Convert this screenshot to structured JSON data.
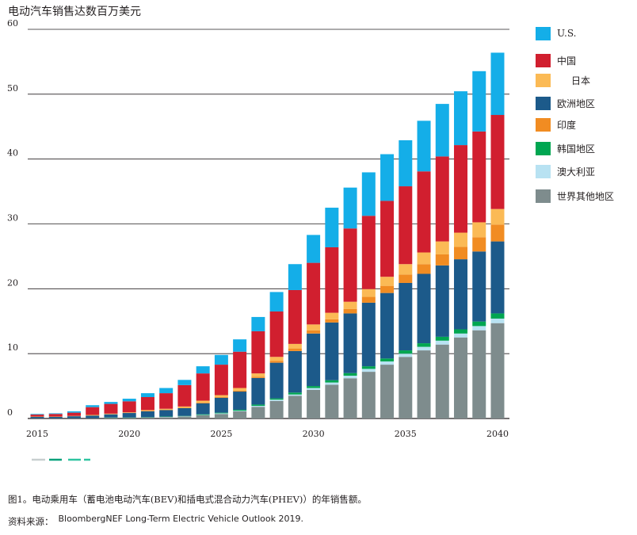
{
  "title": "电动汽车销售达数百万美元",
  "caption": "图1。电动乘用车（蓄电池电动汽车(BEV)和插电式混合动力汽车(PHEV)）的年销售额。",
  "source_label": "资料来源：",
  "source_text": "BloombergNEF Long-Term Electric Vehicle Outlook 2019.",
  "chart_data": {
    "type": "bar",
    "stacked": true,
    "title": "电动汽车销售达数百万美元",
    "xlabel": "",
    "ylabel": "",
    "ylim": [
      0,
      60
    ],
    "yticks": [
      0,
      10,
      20,
      30,
      40,
      50,
      60
    ],
    "xtick_labels": [
      "2015",
      "2020",
      "2025",
      "2030",
      "2035",
      "2040"
    ],
    "grid": true,
    "legend_position": "right",
    "categories": [
      "2015",
      "2016",
      "2017",
      "2018",
      "2019",
      "2020",
      "2021",
      "2022",
      "2023",
      "2024",
      "2025",
      "2026",
      "2027",
      "2028",
      "2029",
      "2030",
      "2031",
      "2032",
      "2033",
      "2034",
      "2035",
      "2036",
      "2037",
      "2038",
      "2039",
      "2040"
    ],
    "series": [
      {
        "name": "世界其他地区",
        "color": "#7e8c8d",
        "values": [
          0.05,
          0.05,
          0.05,
          0.05,
          0.1,
          0.1,
          0.15,
          0.2,
          0.3,
          0.5,
          0.7,
          1.1,
          1.8,
          2.7,
          3.5,
          4.4,
          5.2,
          6.2,
          7.2,
          8.3,
          9.5,
          10.5,
          11.4,
          12.5,
          13.6,
          14.7
        ]
      },
      {
        "name": "澳大利亚",
        "color": "#b8e2f2",
        "values": [
          0,
          0,
          0,
          0,
          0,
          0,
          0,
          0.05,
          0.05,
          0.05,
          0.1,
          0.1,
          0.15,
          0.2,
          0.2,
          0.3,
          0.35,
          0.4,
          0.45,
          0.5,
          0.5,
          0.55,
          0.6,
          0.6,
          0.65,
          0.7
        ]
      },
      {
        "name": "韩国地区",
        "color": "#00a651",
        "values": [
          0,
          0,
          0,
          0,
          0.05,
          0.05,
          0.05,
          0.05,
          0.05,
          0.1,
          0.1,
          0.15,
          0.2,
          0.2,
          0.3,
          0.3,
          0.35,
          0.4,
          0.4,
          0.45,
          0.5,
          0.55,
          0.6,
          0.65,
          0.7,
          0.8
        ]
      },
      {
        "name": "欧洲地区",
        "color": "#1c5a8a",
        "values": [
          0.2,
          0.2,
          0.3,
          0.4,
          0.5,
          0.7,
          0.9,
          1.0,
          1.2,
          1.7,
          2.3,
          2.8,
          4.1,
          5.5,
          6.4,
          8.1,
          8.9,
          9.2,
          9.8,
          10.1,
          10.4,
          10.7,
          11.0,
          10.8,
          10.8,
          11.1
        ]
      },
      {
        "name": "印度",
        "color": "#f18c22",
        "values": [
          0,
          0,
          0,
          0,
          0,
          0,
          0.05,
          0.05,
          0.05,
          0.1,
          0.1,
          0.15,
          0.2,
          0.3,
          0.4,
          0.5,
          0.5,
          0.7,
          0.9,
          1.1,
          1.3,
          1.5,
          1.7,
          1.9,
          2.2,
          2.6
        ]
      },
      {
        "name": "日本",
        "color": "#fbba55",
        "values": [
          0.05,
          0.05,
          0.05,
          0.1,
          0.1,
          0.1,
          0.15,
          0.15,
          0.2,
          0.3,
          0.3,
          0.4,
          0.5,
          0.6,
          0.7,
          0.9,
          1.0,
          1.1,
          1.2,
          1.4,
          1.6,
          1.8,
          2.0,
          2.2,
          2.3,
          2.4
        ]
      },
      {
        "name": "中国",
        "color": "#d11f2f",
        "values": [
          0.3,
          0.4,
          0.5,
          1.2,
          1.5,
          1.7,
          2.0,
          2.4,
          3.3,
          4.2,
          4.7,
          5.6,
          6.5,
          7.0,
          8.3,
          9.5,
          10.1,
          11.3,
          11.3,
          11.7,
          12.0,
          12.5,
          13.1,
          13.5,
          14.0,
          14.5
        ]
      },
      {
        "name": "U.S.",
        "color": "#14aee8",
        "values": [
          0.1,
          0.1,
          0.2,
          0.3,
          0.3,
          0.4,
          0.6,
          0.8,
          0.8,
          1.1,
          1.5,
          1.9,
          2.2,
          3.0,
          4.0,
          4.3,
          6.1,
          6.3,
          6.7,
          7.2,
          7.1,
          7.8,
          8.1,
          8.3,
          9.3,
          9.6
        ]
      }
    ]
  },
  "legend_order": [
    "U.S.",
    "中国",
    "日本",
    "欧洲地区",
    "印度",
    "韩国地区",
    "澳大利亚",
    "世界其他地区"
  ]
}
